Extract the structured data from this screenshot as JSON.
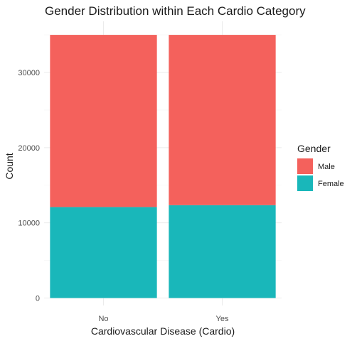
{
  "chart_data": {
    "type": "bar",
    "stacked": true,
    "title": "Gender Distribution within Each Cardio Category",
    "xlabel": "Cardiovascular Disease (Cardio)",
    "ylabel": "Count",
    "categories": [
      "No",
      "Yes"
    ],
    "series": [
      {
        "name": "Female",
        "values": [
          12100,
          12350
        ],
        "color": "#19B7BA"
      },
      {
        "name": "Male",
        "values": [
          22900,
          22650
        ],
        "color": "#F4615C"
      }
    ],
    "ylim": [
      0,
      35000
    ],
    "y_ticks": [
      0,
      10000,
      20000,
      30000
    ],
    "y_tick_labels": [
      "0",
      "10000",
      "20000",
      "30000"
    ],
    "grid": true,
    "legend": {
      "title": "Gender",
      "position": "right",
      "entries": [
        {
          "label": "Male",
          "color": "#F4615C"
        },
        {
          "label": "Female",
          "color": "#19B7BA"
        }
      ]
    }
  }
}
